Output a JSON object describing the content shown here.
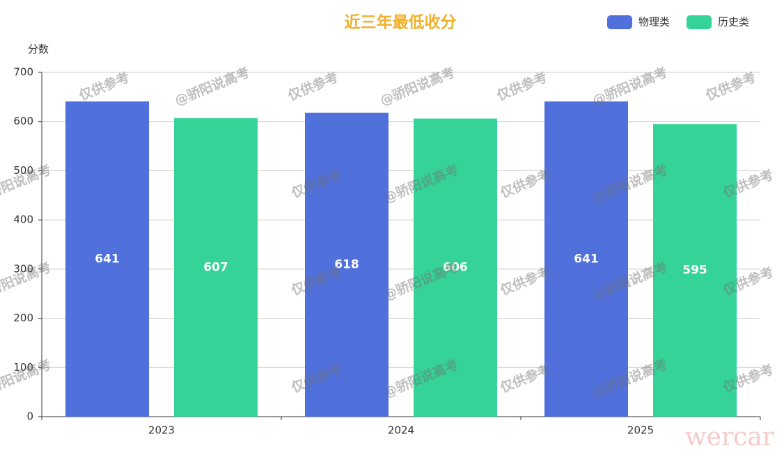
{
  "chart_data": {
    "type": "bar",
    "title": "近三年最低收分",
    "y_label": "分数",
    "categories": [
      "2023",
      "2024",
      "2025"
    ],
    "series": [
      {
        "name": "物理类",
        "color": "#5070dc",
        "values": [
          641,
          618,
          641
        ]
      },
      {
        "name": "历史类",
        "color": "#36d399",
        "values": [
          607,
          606,
          595
        ]
      }
    ],
    "ylim": [
      0,
      700
    ],
    "yticks": [
      0,
      100,
      200,
      300,
      400,
      500,
      600,
      700
    ],
    "grid": true,
    "legend": "top-right",
    "watermarks": [
      "仅供参考",
      "@骄阳说高考"
    ],
    "corner_mark": "wercar"
  }
}
